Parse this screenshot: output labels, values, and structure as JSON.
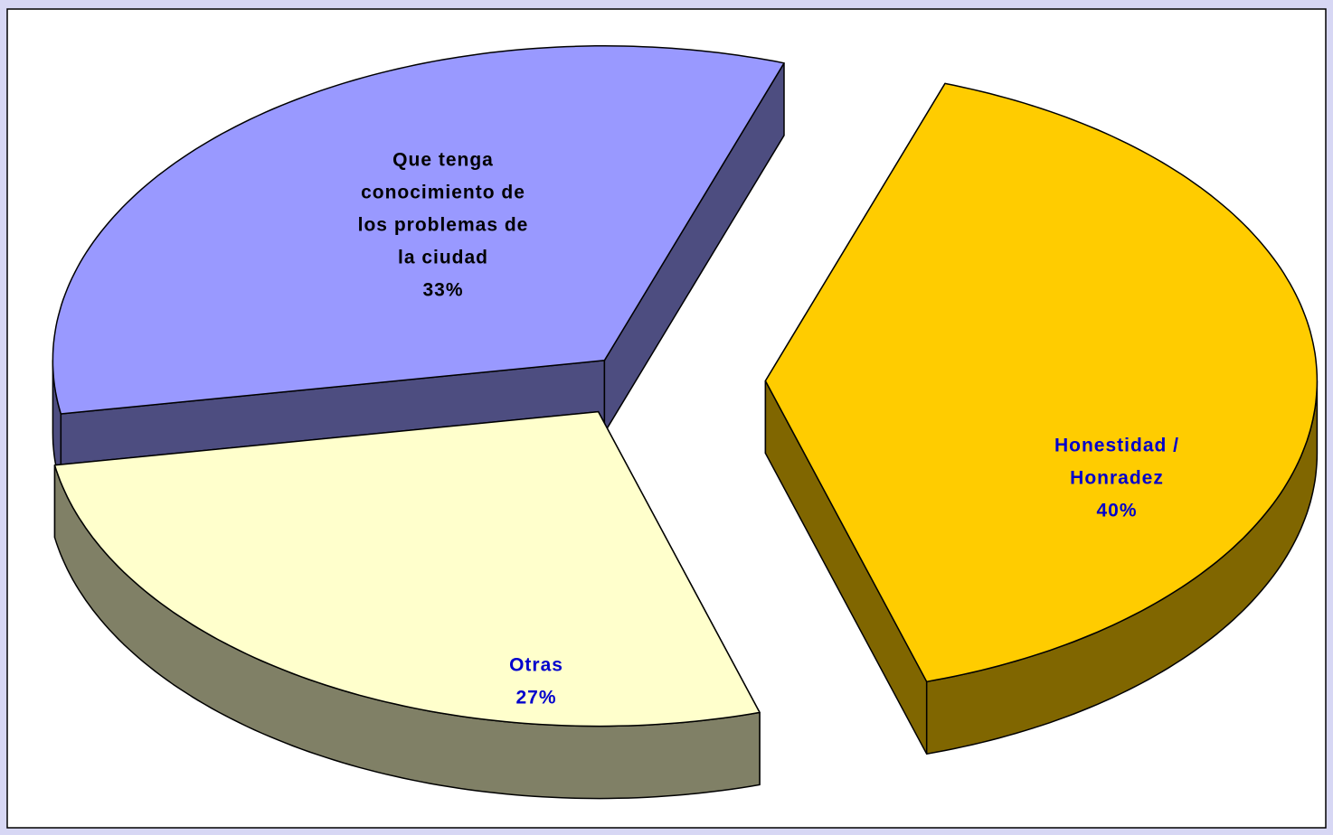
{
  "chart_data": {
    "type": "pie",
    "categories": [
      [
        "Honestidad /",
        "Honradez"
      ],
      [
        "Otras"
      ],
      [
        "Que tenga",
        "conocimiento de",
        "los problemas de",
        "la ciudad"
      ]
    ],
    "values": [
      40,
      27,
      33
    ],
    "value_labels": [
      "40%",
      "27%",
      "33%"
    ],
    "colors": [
      "#ffcc00",
      "#ffffcc",
      "#9999ff"
    ],
    "label_colors": [
      "#0000cc",
      "#0000cc",
      "#000000"
    ]
  }
}
